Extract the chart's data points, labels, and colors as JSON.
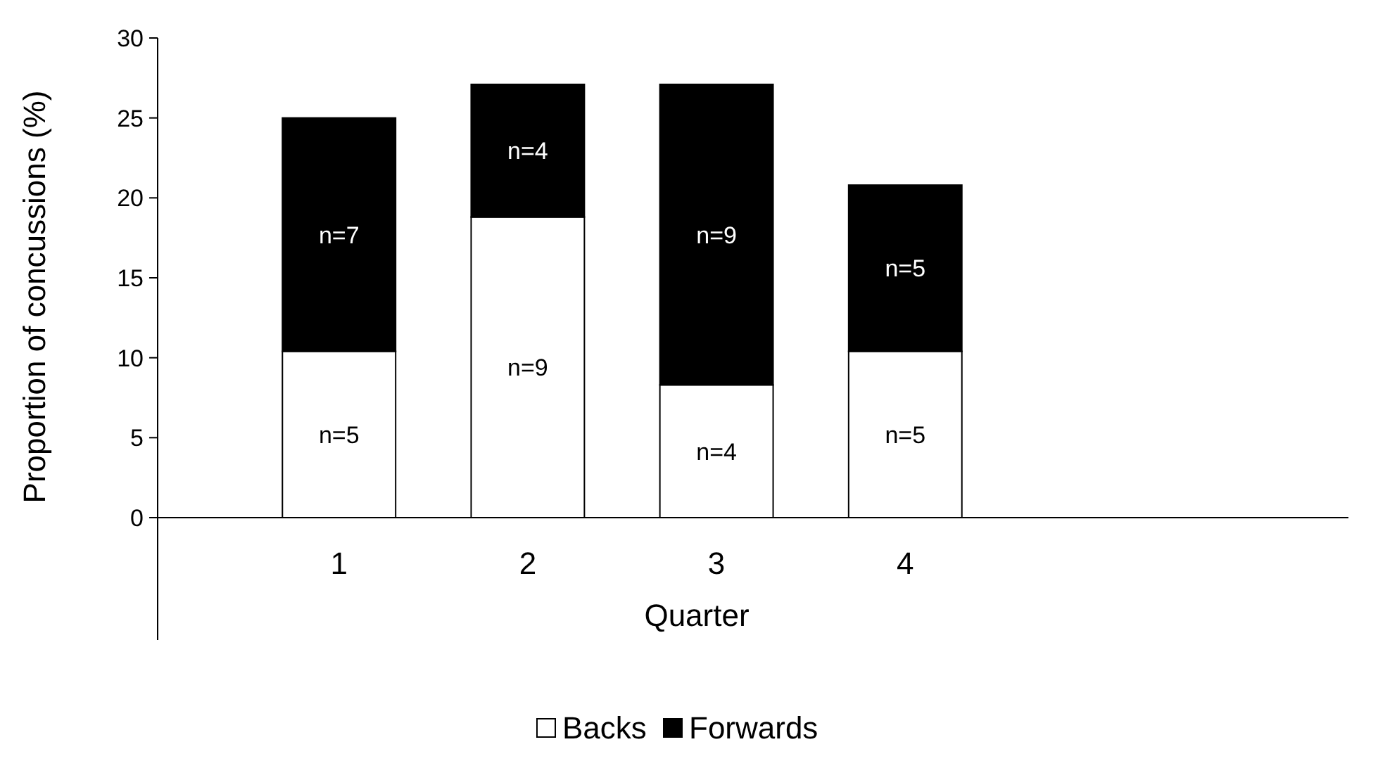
{
  "chart_data": {
    "type": "bar",
    "stacked": true,
    "xlabel": "Quarter",
    "ylabel": "Proportion of concussions (%)",
    "categories": [
      "1",
      "2",
      "3",
      "4"
    ],
    "series": [
      {
        "name": "Backs",
        "color": "#ffffff",
        "values": [
          10.4,
          18.8,
          8.3,
          10.4
        ]
      },
      {
        "name": "Forwards",
        "color": "#000000",
        "values": [
          14.6,
          8.3,
          18.8,
          10.4
        ]
      }
    ],
    "annotations": [
      "n=5",
      "n=9",
      "n=4",
      "n=5",
      "n=7",
      "n=4",
      "n=9",
      "n=5"
    ],
    "ylim": [
      0,
      30
    ],
    "yticks": [
      0,
      5,
      10,
      15,
      20,
      25,
      30
    ],
    "grid": false,
    "legend": "bottom"
  }
}
